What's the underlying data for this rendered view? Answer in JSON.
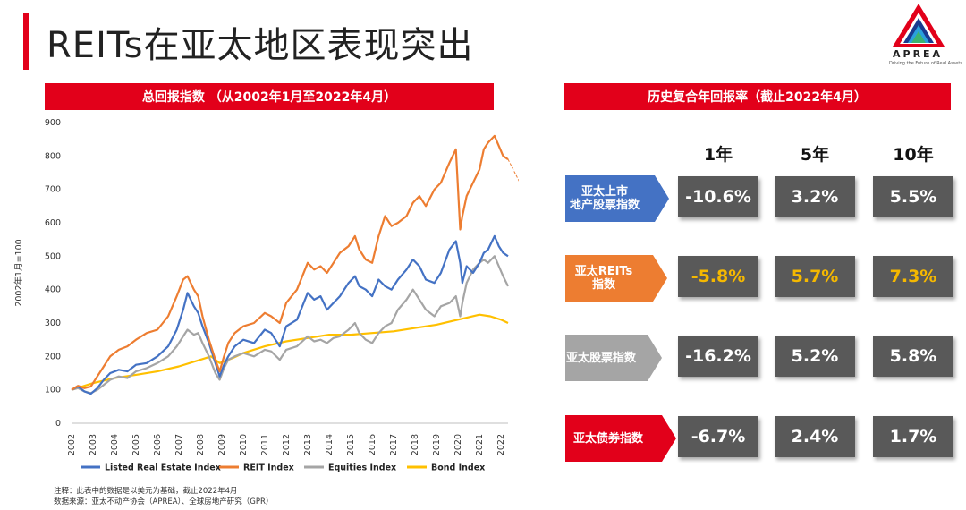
{
  "title": "REITs在亚太地区表现突出",
  "logo": {
    "name": "APREA",
    "tagline": "Driving the Future of Real Assets"
  },
  "left_banner": "总回报指数 （从2002年1月至2022年4月）",
  "right_banner": "历史复合年回报率（截止2022年4月）",
  "colors": {
    "listed": "#4472c4",
    "reit": "#ed7d31",
    "equities": "#a5a5a5",
    "bond": "#ffc000",
    "red": "#e2001a",
    "cell": "#595959",
    "highlight": "#f5b800"
  },
  "chart_data": {
    "type": "line",
    "ylabel": "2002年1月=100",
    "ylim": [
      0,
      900
    ],
    "yticks": [
      0,
      100,
      200,
      300,
      400,
      500,
      600,
      700,
      800,
      900
    ],
    "xlim": [
      2002,
      2022.33
    ],
    "xticks": [
      "2002",
      "2003",
      "2004",
      "2005",
      "2006",
      "2007",
      "2008",
      "2009",
      "2010",
      "2011",
      "2012",
      "2013",
      "2014",
      "2015",
      "2016",
      "2017",
      "2018",
      "2019",
      "2020",
      "2021",
      "2022"
    ],
    "legend_position": "bottom",
    "series": [
      {
        "name": "Listed Real Estate Index",
        "color": "#4472c4",
        "x": [
          2002,
          2002.3,
          2002.6,
          2002.9,
          2003.2,
          2003.5,
          2003.8,
          2004.2,
          2004.6,
          2005,
          2005.5,
          2006,
          2006.5,
          2006.9,
          2007.2,
          2007.4,
          2007.7,
          2007.9,
          2008.1,
          2008.4,
          2008.7,
          2008.9,
          2009.1,
          2009.3,
          2009.6,
          2010,
          2010.5,
          2011,
          2011.3,
          2011.7,
          2012,
          2012.5,
          2013,
          2013.3,
          2013.6,
          2013.9,
          2014.2,
          2014.5,
          2014.9,
          2015.2,
          2015.4,
          2015.7,
          2016,
          2016.3,
          2016.6,
          2016.9,
          2017.2,
          2017.6,
          2017.9,
          2018.2,
          2018.5,
          2018.9,
          2019.2,
          2019.6,
          2019.9,
          2020.1,
          2020.2,
          2020.4,
          2020.7,
          2021,
          2021.2,
          2021.4,
          2021.7,
          2021.9,
          2022.1,
          2022.33
        ],
        "values": [
          100,
          110,
          95,
          88,
          105,
          130,
          150,
          160,
          155,
          175,
          180,
          200,
          230,
          280,
          340,
          390,
          350,
          330,
          290,
          240,
          180,
          140,
          175,
          200,
          230,
          250,
          240,
          280,
          270,
          230,
          290,
          310,
          390,
          370,
          380,
          340,
          360,
          380,
          420,
          440,
          410,
          400,
          380,
          430,
          410,
          400,
          430,
          460,
          490,
          470,
          430,
          420,
          450,
          520,
          545,
          480,
          420,
          470,
          450,
          480,
          510,
          520,
          560,
          530,
          510,
          500
        ]
      },
      {
        "name": "REIT Index",
        "color": "#ed7d31",
        "x": [
          2002,
          2002.3,
          2002.6,
          2002.9,
          2003.2,
          2003.5,
          2003.8,
          2004.2,
          2004.6,
          2005,
          2005.5,
          2006,
          2006.5,
          2006.9,
          2007.2,
          2007.4,
          2007.7,
          2007.9,
          2008.1,
          2008.4,
          2008.7,
          2008.9,
          2009.1,
          2009.3,
          2009.6,
          2010,
          2010.5,
          2011,
          2011.3,
          2011.7,
          2012,
          2012.5,
          2013,
          2013.3,
          2013.6,
          2013.9,
          2014.2,
          2014.5,
          2014.9,
          2015.2,
          2015.4,
          2015.7,
          2016,
          2016.3,
          2016.6,
          2016.9,
          2017.2,
          2017.6,
          2017.9,
          2018.2,
          2018.5,
          2018.9,
          2019.2,
          2019.6,
          2019.9,
          2020.1,
          2020.2,
          2020.4,
          2020.7,
          2021,
          2021.2,
          2021.4,
          2021.7,
          2021.9,
          2022.1,
          2022.33
        ],
        "values": [
          100,
          112,
          105,
          110,
          140,
          170,
          200,
          220,
          230,
          250,
          270,
          280,
          320,
          380,
          430,
          440,
          400,
          380,
          320,
          250,
          190,
          155,
          200,
          240,
          270,
          290,
          300,
          330,
          320,
          300,
          360,
          400,
          480,
          460,
          470,
          450,
          480,
          510,
          530,
          560,
          520,
          490,
          480,
          560,
          620,
          590,
          600,
          620,
          660,
          680,
          650,
          700,
          720,
          780,
          820,
          580,
          620,
          680,
          720,
          760,
          820,
          840,
          860,
          830,
          800,
          790
        ]
      },
      {
        "name": "Equities Index",
        "color": "#a5a5a5",
        "x": [
          2002,
          2002.3,
          2002.6,
          2002.9,
          2003.2,
          2003.5,
          2003.8,
          2004.2,
          2004.6,
          2005,
          2005.5,
          2006,
          2006.5,
          2006.9,
          2007.2,
          2007.4,
          2007.7,
          2007.9,
          2008.1,
          2008.4,
          2008.7,
          2008.9,
          2009.1,
          2009.3,
          2009.6,
          2010,
          2010.5,
          2011,
          2011.3,
          2011.7,
          2012,
          2012.5,
          2013,
          2013.3,
          2013.6,
          2013.9,
          2014.2,
          2014.5,
          2014.9,
          2015.2,
          2015.4,
          2015.7,
          2016,
          2016.3,
          2016.6,
          2016.9,
          2017.2,
          2017.6,
          2017.9,
          2018.2,
          2018.5,
          2018.9,
          2019.2,
          2019.6,
          2019.9,
          2020.1,
          2020.2,
          2020.4,
          2020.7,
          2021,
          2021.2,
          2021.4,
          2021.7,
          2021.9,
          2022.1,
          2022.33
        ],
        "values": [
          100,
          105,
          95,
          90,
          100,
          115,
          130,
          140,
          135,
          155,
          165,
          180,
          200,
          230,
          260,
          280,
          265,
          270,
          240,
          200,
          150,
          130,
          165,
          190,
          200,
          210,
          200,
          220,
          215,
          190,
          220,
          230,
          260,
          245,
          250,
          240,
          255,
          260,
          280,
          300,
          270,
          250,
          240,
          270,
          290,
          300,
          340,
          370,
          400,
          370,
          340,
          320,
          350,
          360,
          380,
          320,
          360,
          420,
          460,
          480,
          490,
          480,
          500,
          470,
          440,
          410
        ]
      },
      {
        "name": "Bond Index",
        "color": "#ffc000",
        "x": [
          2002,
          2003,
          2004,
          2005,
          2006,
          2007,
          2008,
          2008.5,
          2008.9,
          2009.5,
          2010,
          2011,
          2012,
          2013,
          2014,
          2015,
          2016,
          2017,
          2018,
          2019,
          2020,
          2021,
          2021.5,
          2022,
          2022.33
        ],
        "values": [
          100,
          120,
          135,
          145,
          155,
          170,
          190,
          200,
          180,
          195,
          210,
          230,
          245,
          255,
          265,
          265,
          270,
          275,
          285,
          295,
          310,
          325,
          320,
          310,
          300
        ]
      }
    ]
  },
  "table": {
    "columns": [
      "1年",
      "5年",
      "10年"
    ],
    "rows": [
      {
        "label": "亚太上市\n地产股票指数",
        "color": "#4472c4",
        "values": [
          "-10.6%",
          "3.2%",
          "5.5%"
        ],
        "highlight": false
      },
      {
        "label": "亚太REITs\n指数",
        "color": "#ed7d31",
        "values": [
          "-5.8%",
          "5.7%",
          "7.3%"
        ],
        "highlight": true
      },
      {
        "label": "亚太股票指数",
        "color": "#a5a5a5",
        "values": [
          "-16.2%",
          "5.2%",
          "5.8%"
        ],
        "highlight": false
      },
      {
        "label": "亚太债券指数",
        "color": "#e2001a",
        "values": [
          "-6.7%",
          "2.4%",
          "1.7%"
        ],
        "highlight": false
      }
    ]
  },
  "notes": {
    "line1": "注释：此表中的数据是以美元为基础，截止2022年4月",
    "line2": "数据来源：亚太不动产协会（APREA）、全球房地产研究（GPR）"
  }
}
